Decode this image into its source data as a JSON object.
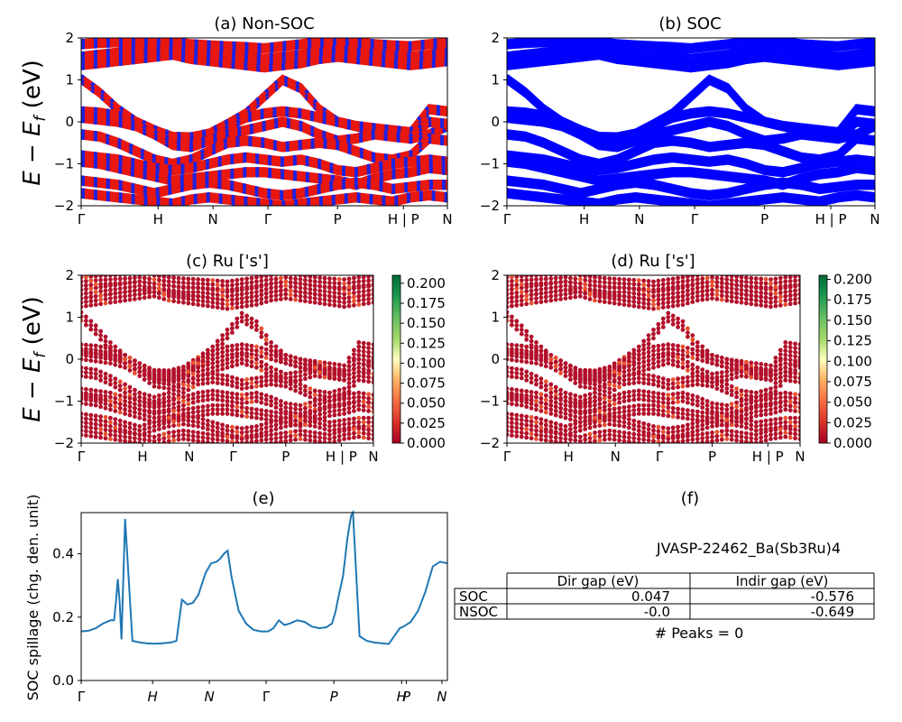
{
  "colors": {
    "nonsoc_red": "#e8170f",
    "nonsoc_blue": "#1a22e6",
    "soc_blue": "#0000ff",
    "spillage_line": "#1f77b4"
  },
  "chart_data": [
    {
      "id": "a",
      "type": "line",
      "title": "(a) Non-SOC",
      "ylabel": "E − E_f (eV)",
      "ylim": [
        -2,
        2
      ],
      "yticks": [
        "−2",
        "−1",
        "0",
        "1",
        "2"
      ],
      "xticks": [
        "Γ",
        "H",
        "N",
        "Γ",
        "P",
        "H | P",
        "N"
      ],
      "series": [
        {
          "values": [
            1.02,
            0.7,
            0.3,
            0.0,
            -0.2,
            -0.36,
            -0.37,
            -0.28,
            -0.05,
            0.2,
            0.6,
            1.0,
            0.8,
            0.3,
            0.0,
            -0.1,
            -0.2,
            -0.3,
            -0.4,
            -0.3,
            -0.1
          ]
        },
        {
          "values": [
            0.25,
            0.22,
            0.15,
            0.0,
            -0.2,
            -0.4,
            -0.42,
            -0.35,
            -0.1,
            0.1,
            0.2,
            0.25,
            0.2,
            0.1,
            0.0,
            -0.1,
            -0.15,
            -0.2,
            -0.25,
            0.3,
            0.25
          ]
        },
        {
          "values": [
            0.1,
            0.05,
            0.0,
            -0.1,
            -0.3,
            -0.55,
            -0.6,
            -0.45,
            -0.3,
            -0.2,
            -0.1,
            0.0,
            -0.1,
            -0.3,
            -0.45,
            -0.4,
            -0.3,
            -0.35,
            -0.4,
            0.0,
            -0.05
          ]
        },
        {
          "values": [
            -0.3,
            -0.35,
            -0.5,
            -0.7,
            -0.9,
            -1.0,
            -0.9,
            -0.7,
            -0.5,
            -0.45,
            -0.5,
            -0.6,
            -0.55,
            -0.5,
            -0.55,
            -0.7,
            -0.85,
            -0.9,
            -0.8,
            -0.4,
            -0.45
          ]
        },
        {
          "values": [
            -0.8,
            -0.85,
            -0.9,
            -1.0,
            -1.1,
            -1.15,
            -1.1,
            -1.0,
            -0.9,
            -0.85,
            -0.9,
            -0.95,
            -0.9,
            -1.0,
            -1.15,
            -1.2,
            -1.1,
            -1.0,
            -0.95,
            -0.9,
            -0.95
          ]
        },
        {
          "values": [
            -0.95,
            -1.0,
            -1.1,
            -1.2,
            -1.3,
            -1.4,
            -1.35,
            -1.3,
            -1.25,
            -1.2,
            -1.2,
            -1.25,
            -1.3,
            -1.35,
            -1.4,
            -1.5,
            -1.35,
            -1.25,
            -1.2,
            -1.1,
            -1.15
          ]
        },
        {
          "values": [
            -1.4,
            -1.45,
            -1.5,
            -1.6,
            -1.7,
            -1.6,
            -1.5,
            -1.45,
            -1.5,
            -1.6,
            -1.7,
            -1.75,
            -1.7,
            -1.6,
            -1.5,
            -1.45,
            -1.5,
            -1.6,
            -1.55,
            -1.5,
            -1.5
          ]
        },
        {
          "values": [
            -1.7,
            -1.75,
            -1.8,
            -1.85,
            -1.9,
            -1.95,
            -1.85,
            -1.8,
            -1.85,
            -1.9,
            -1.95,
            -2.0,
            -1.95,
            -1.9,
            -1.85,
            -1.8,
            -1.85,
            -1.9,
            -1.8,
            -1.75,
            -1.8
          ]
        },
        {
          "values": [
            1.35,
            1.4,
            1.45,
            1.5,
            1.55,
            1.6,
            1.5,
            1.45,
            1.4,
            1.35,
            1.3,
            1.35,
            1.4,
            1.5,
            1.55,
            1.5,
            1.45,
            1.4,
            1.35,
            1.4,
            1.45
          ]
        },
        {
          "values": [
            1.55,
            1.6,
            1.65,
            1.7,
            1.75,
            1.7,
            1.65,
            1.6,
            1.6,
            1.55,
            1.5,
            1.55,
            1.6,
            1.7,
            1.75,
            1.7,
            1.65,
            1.6,
            1.55,
            1.6,
            1.65
          ]
        },
        {
          "values": [
            1.85,
            1.88,
            1.9,
            1.92,
            1.95,
            1.9,
            1.85,
            1.82,
            1.8,
            1.78,
            1.75,
            1.8,
            1.85,
            1.9,
            1.95,
            1.9,
            1.85,
            1.82,
            1.8,
            1.85,
            1.88
          ]
        }
      ]
    },
    {
      "id": "b",
      "type": "line",
      "title": "(b) SOC",
      "ylim": [
        -2,
        2
      ],
      "yticks": [
        "−2",
        "−1",
        "0",
        "1",
        "2"
      ],
      "xticks": [
        "Γ",
        "H",
        "N",
        "Γ",
        "P",
        "H | P",
        "N"
      ],
      "series": "same bands as (a)"
    },
    {
      "id": "c",
      "type": "scatter",
      "title": "(c)  Ru ['s']",
      "ylabel": "E − E_f (eV)",
      "ylim": [
        -2,
        2
      ],
      "yticks": [
        "−2",
        "−1",
        "0",
        "1",
        "2"
      ],
      "xticks": [
        "Γ",
        "H",
        "N",
        "Γ",
        "P",
        "H | P",
        "N"
      ],
      "colorbar": {
        "cmap": "RdYlGn",
        "range": [
          0.0,
          0.21
        ],
        "ticks": [
          "0.000",
          "0.025",
          "0.050",
          "0.075",
          "0.100",
          "0.125",
          "0.150",
          "0.175",
          "0.200"
        ]
      }
    },
    {
      "id": "d",
      "type": "scatter",
      "title": "(d) Ru ['s']",
      "ylim": [
        -2,
        2
      ],
      "yticks": [
        "−2",
        "−1",
        "0",
        "1",
        "2"
      ],
      "xticks": [
        "Γ",
        "H",
        "N",
        "Γ",
        "P",
        "H | P",
        "N"
      ],
      "colorbar": {
        "cmap": "RdYlGn",
        "range": [
          0.0,
          0.205
        ],
        "ticks": [
          "0.000",
          "0.025",
          "0.050",
          "0.075",
          "0.100",
          "0.125",
          "0.150",
          "0.175",
          "0.200"
        ]
      }
    },
    {
      "id": "e",
      "type": "line",
      "title": "(e)",
      "ylabel": "SOC spillage (chg. den. unit)",
      "ylim": [
        0,
        0.53
      ],
      "yticks": [
        "0.0",
        "0.2",
        "0.4"
      ],
      "xticks": [
        "Γ",
        "H",
        "N",
        "Γ",
        "P",
        "H",
        "P",
        "N"
      ],
      "series": [
        {
          "x": [
            0,
            0.02,
            0.04,
            0.06,
            0.08,
            0.09,
            0.095,
            0.1,
            0.105,
            0.11,
            0.12,
            0.14,
            0.16,
            0.18,
            0.2,
            0.22,
            0.245,
            0.26,
            0.275,
            0.29,
            0.305,
            0.32,
            0.34,
            0.355,
            0.37,
            0.38,
            0.39,
            0.4,
            0.41,
            0.43,
            0.45,
            0.47,
            0.49,
            0.51,
            0.525,
            0.54,
            0.555,
            0.57,
            0.59,
            0.61,
            0.63,
            0.65,
            0.67,
            0.685,
            0.695,
            0.7,
            0.715,
            0.727,
            0.737,
            0.742,
            0.76,
            0.78,
            0.8,
            0.84,
            0.87,
            0.88,
            0.9,
            0.92,
            0.94,
            0.96,
            0.98,
            1.0
          ],
          "values": [
            0.155,
            0.157,
            0.165,
            0.18,
            0.19,
            0.19,
            0.25,
            0.32,
            0.25,
            0.13,
            0.51,
            0.125,
            0.12,
            0.117,
            0.116,
            0.117,
            0.12,
            0.125,
            0.255,
            0.24,
            0.245,
            0.27,
            0.34,
            0.37,
            0.375,
            0.385,
            0.4,
            0.41,
            0.33,
            0.22,
            0.18,
            0.16,
            0.155,
            0.155,
            0.165,
            0.19,
            0.175,
            0.18,
            0.19,
            0.185,
            0.17,
            0.165,
            0.168,
            0.18,
            0.22,
            0.25,
            0.33,
            0.45,
            0.52,
            0.53,
            0.14,
            0.125,
            0.12,
            0.115,
            0.165,
            0.17,
            0.185,
            0.22,
            0.28,
            0.36,
            0.375,
            0.37
          ]
        }
      ]
    }
  ],
  "panel_f": {
    "title": "(f)",
    "material": "JVASP-22462_Ba(Sb3Ru)4",
    "table": {
      "headers": [
        "",
        "Dir gap (eV)",
        "Indir gap (eV)"
      ],
      "rows": [
        [
          "SOC",
          "0.047",
          "-0.576"
        ],
        [
          "NSOC",
          "-0.0",
          "-0.649"
        ]
      ]
    },
    "peaks": "# Peaks = 0"
  }
}
